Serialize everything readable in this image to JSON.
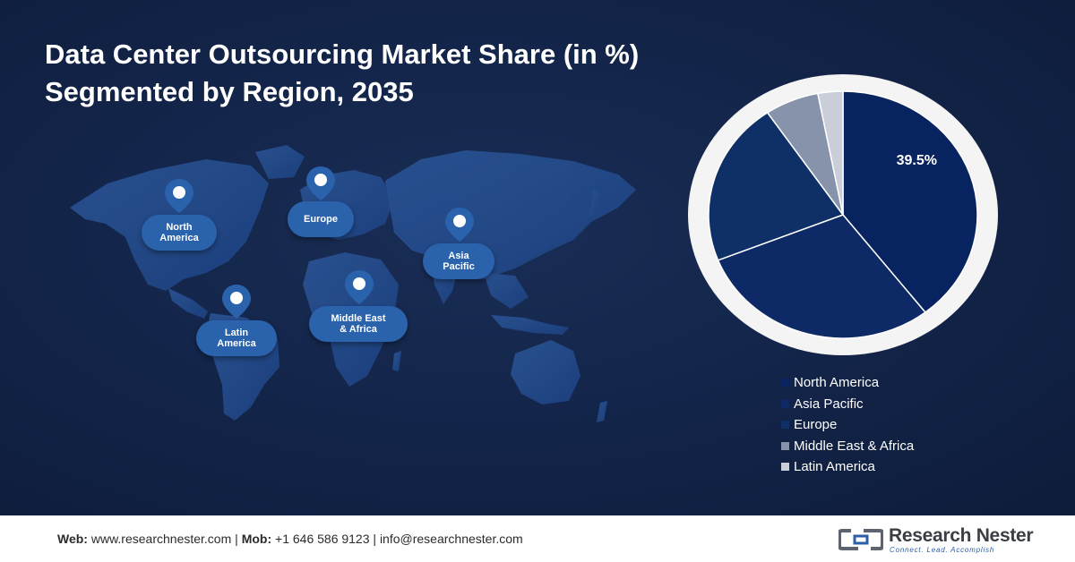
{
  "title": {
    "line1": "Data Center Outsourcing Market Share (in %)",
    "line2": "Segmented by Region, 2035"
  },
  "map": {
    "regions": [
      {
        "line1": "North",
        "line2": "America"
      },
      {
        "line1": "Europe",
        "line2": ""
      },
      {
        "line1": "Asia",
        "line2": "Pacific"
      },
      {
        "line1": "Latin",
        "line2": "America"
      },
      {
        "line1": "Middle East",
        "line2": "& Africa"
      }
    ]
  },
  "chart_data": {
    "type": "pie",
    "categories": [
      "North America",
      "Asia Pacific",
      "Europe",
      "Middle East & Africa",
      "Latin America"
    ],
    "values": [
      39.5,
      29.5,
      21.5,
      6.5,
      3.0
    ],
    "colors": [
      "#082460",
      "#0d2a66",
      "#0e3066",
      "#8792ab",
      "#c9ced8"
    ],
    "data_labels": [
      "39.5%",
      "",
      "",
      "",
      ""
    ],
    "legend": "bottom-right"
  },
  "footer": {
    "web_label": "Web:",
    "web_value": "www.researchnester.com",
    "mob_label": "Mob:",
    "mob_value": "+1 646 586 9123",
    "email": "info@researchnester.com",
    "brand_name": "Research Nester",
    "brand_tagline": "Connect. Lead. Accomplish"
  }
}
